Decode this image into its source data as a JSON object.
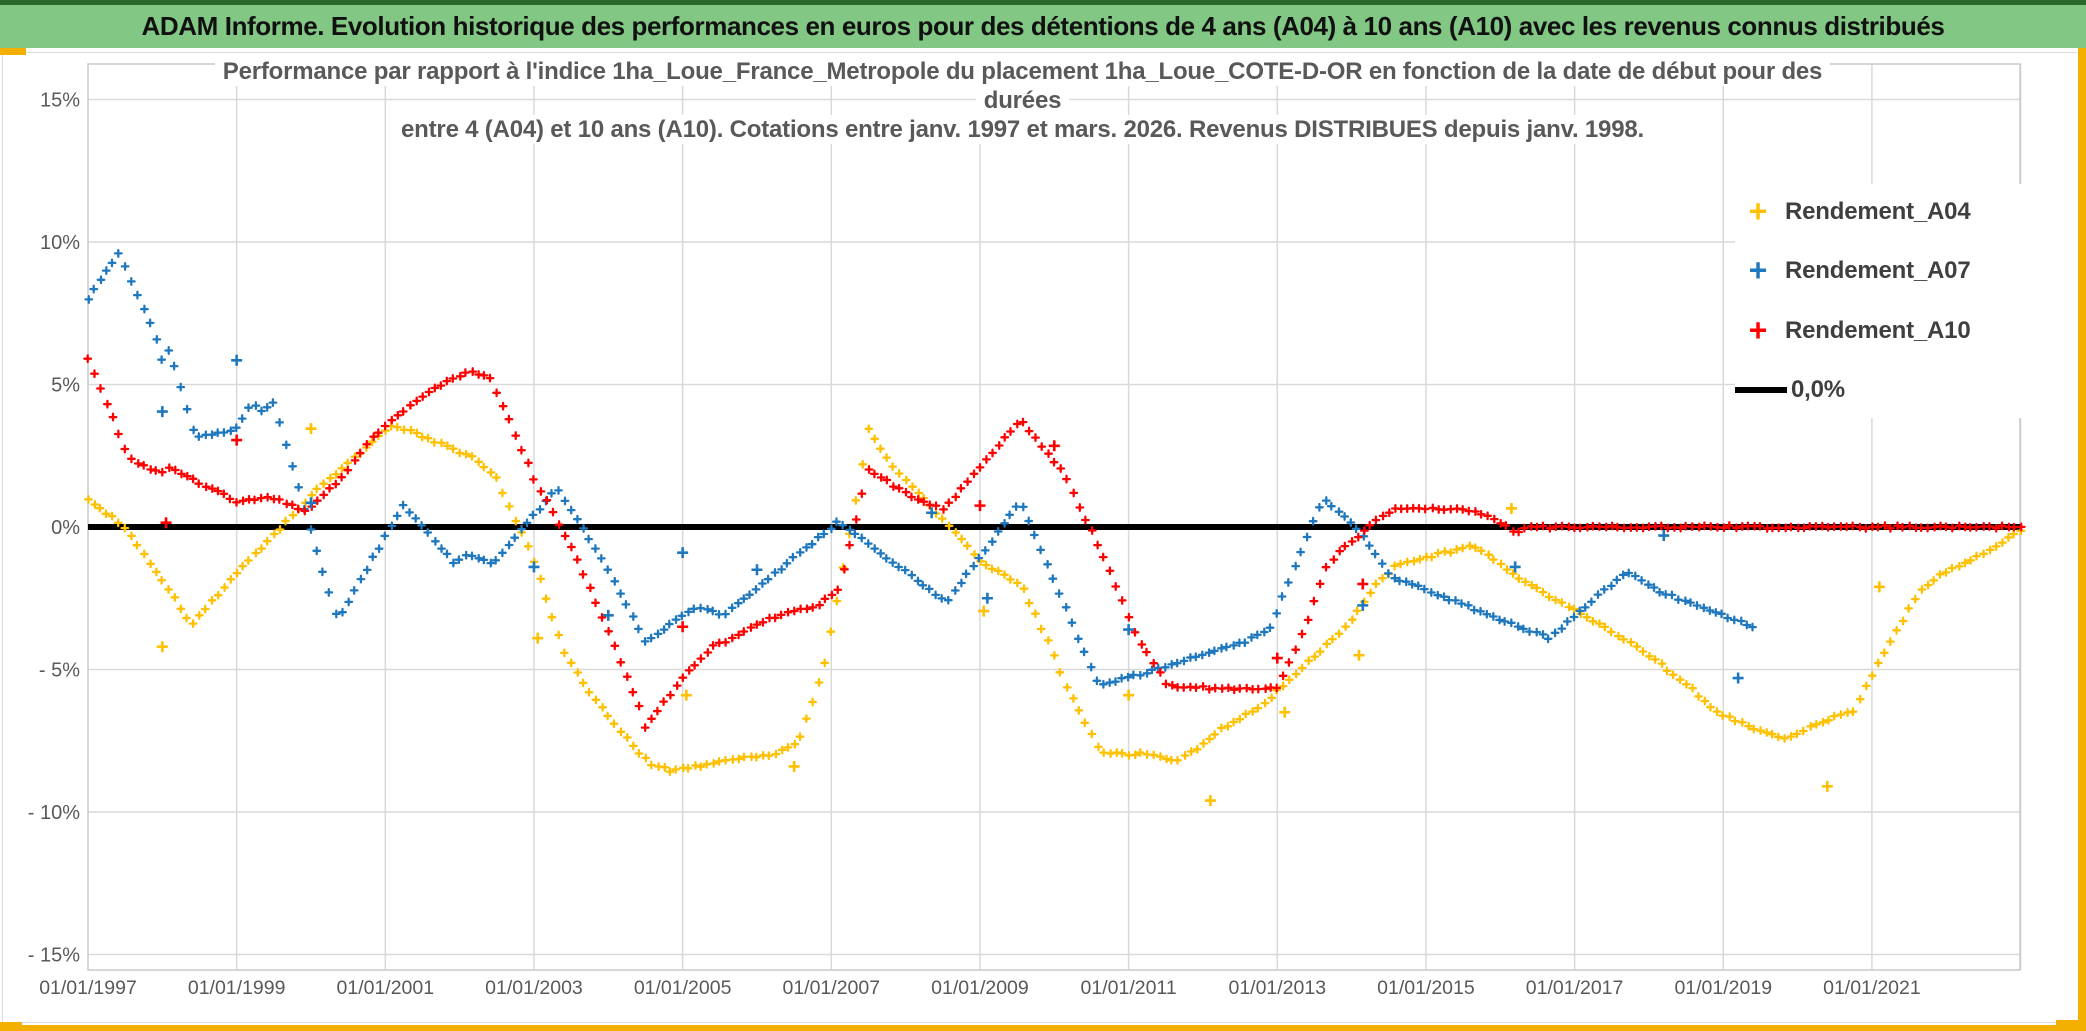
{
  "header": {
    "title": "ADAM Informe. Evolution historique des performances en euros pour des détentions de 4 ans (A04) à 10 ans (A10) avec les revenus connus distribués"
  },
  "colors": {
    "header_bg": "#82C783",
    "header_top_border": "#2B682B",
    "gold_accent": "#F3B000",
    "grid": "#D9D9D9",
    "plot_border": "#C9C9C9",
    "axis_text": "#595959",
    "title_text": "#595959",
    "legend_text": "#3F3F3F",
    "zero_line": "#000000"
  },
  "chart_data": {
    "type": "scatter",
    "title_lines": [
      "Performance par rapport à l'indice 1ha_Loue_France_Metropole  du placement 1ha_Loue_COTE-D-OR en fonction de la date de début pour des",
      "durées",
      "entre 4 (A04) et 10 ans (A10). Cotations entre janv. 1997 et mars. 2026. Revenus DISTRIBUES depuis janv. 1998."
    ],
    "xlabel": "",
    "ylabel": "",
    "x_tick_labels": [
      "01/01/1997",
      "01/01/1999",
      "01/01/2001",
      "01/01/2003",
      "01/01/2005",
      "01/01/2007",
      "01/01/2009",
      "01/01/2011",
      "01/01/2013",
      "01/01/2015",
      "01/01/2017",
      "01/01/2019",
      "01/01/2021"
    ],
    "x_tick_years": [
      1997,
      1999,
      2001,
      2003,
      2005,
      2007,
      2009,
      2011,
      2013,
      2015,
      2017,
      2019,
      2021
    ],
    "x_gridline_years": [
      1999,
      2001,
      2003,
      2005,
      2007,
      2009,
      2011,
      2013,
      2015,
      2017,
      2019,
      2021,
      2023
    ],
    "y_tick_labels": [
      "15%",
      "10%",
      "5%",
      "0%",
      "- 5%",
      "- 10%",
      "- 15%"
    ],
    "y_tick_values": [
      15,
      10,
      5,
      0,
      -5,
      -10,
      -15
    ],
    "xlim_years": [
      1997,
      2023
    ],
    "ylim": [
      -15,
      15
    ],
    "grid": true,
    "legend_position": "right-inside",
    "marker": "plus",
    "sample_step_years": 0.0833,
    "zero_line": {
      "label": "0,0%",
      "value": 0,
      "start_year": 1997.0,
      "end_year": 2023.0
    },
    "series": [
      {
        "name": "Rendement_A04",
        "color": "#FFC000",
        "vertices": [
          [
            1997.0,
            1.0
          ],
          [
            1997.5,
            0.0
          ],
          [
            1998.4,
            -3.4
          ],
          [
            1999.0,
            -1.6
          ],
          [
            1999.6,
            0.0
          ],
          [
            2000.15,
            1.5
          ],
          [
            2001.1,
            3.55
          ],
          [
            2001.5,
            3.2
          ],
          [
            2002.2,
            2.4
          ],
          [
            2002.5,
            1.7
          ],
          [
            2003.0,
            -1.2
          ],
          [
            2003.4,
            -4.3
          ],
          [
            2003.8,
            -6.0
          ],
          [
            2004.25,
            -7.4
          ],
          [
            2004.55,
            -8.3
          ],
          [
            2004.85,
            -8.55
          ],
          [
            2005.4,
            -8.3
          ],
          [
            2005.9,
            -8.05
          ],
          [
            2006.2,
            -8.0
          ],
          [
            2006.55,
            -7.6
          ],
          [
            2006.9,
            -5.0
          ],
          [
            2007.2,
            -1.0
          ],
          [
            2007.5,
            3.4
          ],
          [
            2007.9,
            1.9
          ],
          [
            2008.1,
            1.4
          ],
          [
            2008.6,
            0.0
          ],
          [
            2009.05,
            -1.3
          ],
          [
            2009.55,
            -2.0
          ],
          [
            2009.9,
            -3.9
          ],
          [
            2010.15,
            -5.5
          ],
          [
            2010.4,
            -6.8
          ],
          [
            2010.62,
            -7.9
          ],
          [
            2011.0,
            -8.0
          ],
          [
            2011.2,
            -7.95
          ],
          [
            2011.65,
            -8.25
          ],
          [
            2012.0,
            -7.6
          ],
          [
            2012.3,
            -7.0
          ],
          [
            2012.62,
            -6.55
          ],
          [
            2012.87,
            -6.1
          ],
          [
            2013.2,
            -5.25
          ],
          [
            2013.6,
            -4.3
          ],
          [
            2014.0,
            -3.3
          ],
          [
            2014.3,
            -2.1
          ],
          [
            2014.6,
            -1.35
          ],
          [
            2015.1,
            -1.0
          ],
          [
            2015.65,
            -0.65
          ],
          [
            2016.15,
            -1.6
          ],
          [
            2016.7,
            -2.5
          ],
          [
            2017.2,
            -3.2
          ],
          [
            2017.65,
            -3.9
          ],
          [
            2018.1,
            -4.7
          ],
          [
            2018.55,
            -5.6
          ],
          [
            2018.85,
            -6.4
          ],
          [
            2019.25,
            -6.9
          ],
          [
            2019.85,
            -7.45
          ],
          [
            2020.35,
            -6.8
          ],
          [
            2020.75,
            -6.45
          ],
          [
            2021.1,
            -4.7
          ],
          [
            2021.65,
            -2.2
          ],
          [
            2022.0,
            -1.55
          ],
          [
            2022.4,
            -1.1
          ],
          [
            2022.75,
            -0.5
          ],
          [
            2023.0,
            -0.15
          ]
        ]
      },
      {
        "name": "Rendement_A07",
        "color": "#1F78BE",
        "vertices": [
          [
            1997.0,
            8.0
          ],
          [
            1997.42,
            9.65
          ],
          [
            1997.92,
            6.6
          ],
          [
            1998.0,
            5.9
          ],
          [
            1998.1,
            6.2
          ],
          [
            1998.45,
            3.15
          ],
          [
            1999.0,
            3.45
          ],
          [
            1999.2,
            4.3
          ],
          [
            1999.35,
            4.05
          ],
          [
            1999.5,
            4.4
          ],
          [
            2000.35,
            -3.25
          ],
          [
            2001.25,
            0.8
          ],
          [
            2001.95,
            -1.35
          ],
          [
            2002.05,
            -0.95
          ],
          [
            2002.45,
            -1.3
          ],
          [
            2003.3,
            1.35
          ],
          [
            2003.85,
            -0.8
          ],
          [
            2004.5,
            -4.0
          ],
          [
            2005.2,
            -2.8
          ],
          [
            2005.55,
            -3.1
          ],
          [
            2007.1,
            0.2
          ],
          [
            2008.55,
            -2.65
          ],
          [
            2009.55,
            0.9
          ],
          [
            2010.6,
            -5.6
          ],
          [
            2012.6,
            -4.0
          ],
          [
            2012.9,
            -3.55
          ],
          [
            2013.62,
            1.0
          ],
          [
            2014.1,
            -0.1
          ],
          [
            2014.5,
            -1.7
          ],
          [
            2015.0,
            -2.2
          ],
          [
            2016.65,
            -3.9
          ],
          [
            2017.7,
            -1.55
          ],
          [
            2018.1,
            -2.2
          ],
          [
            2019.4,
            -3.5
          ]
        ]
      },
      {
        "name": "Rendement_A10",
        "color": "#FF0000",
        "vertices": [
          [
            1997.0,
            5.9
          ],
          [
            1997.55,
            2.45
          ],
          [
            1997.7,
            2.2
          ],
          [
            1998.0,
            1.9
          ],
          [
            1998.05,
            2.15
          ],
          [
            1999.05,
            0.85
          ],
          [
            1999.4,
            1.1
          ],
          [
            1999.95,
            0.55
          ],
          [
            2000.4,
            1.7
          ],
          [
            2000.85,
            3.2
          ],
          [
            2001.3,
            4.2
          ],
          [
            2001.8,
            5.1
          ],
          [
            2002.1,
            5.45
          ],
          [
            2002.4,
            5.3
          ],
          [
            2002.5,
            4.75
          ],
          [
            2003.0,
            1.7
          ],
          [
            2003.6,
            -1.2
          ],
          [
            2004.45,
            -6.5
          ],
          [
            2004.5,
            -7.0
          ],
          [
            2005.05,
            -5.1
          ],
          [
            2005.45,
            -4.1
          ],
          [
            2005.6,
            -4.0
          ],
          [
            2006.1,
            -3.3
          ],
          [
            2006.5,
            -2.9
          ],
          [
            2006.8,
            -2.8
          ],
          [
            2007.1,
            -2.2
          ],
          [
            2007.5,
            2.0
          ],
          [
            2008.0,
            1.2
          ],
          [
            2008.5,
            0.6
          ],
          [
            2009.55,
            3.75
          ],
          [
            2010.1,
            2.0
          ],
          [
            2010.3,
            0.9
          ],
          [
            2010.75,
            -1.5
          ],
          [
            2011.1,
            -3.8
          ],
          [
            2011.5,
            -5.5
          ],
          [
            2011.65,
            -5.6
          ],
          [
            2012.1,
            -5.65
          ],
          [
            2012.55,
            -5.7
          ],
          [
            2013.0,
            -5.65
          ],
          [
            2013.35,
            -3.7
          ],
          [
            2013.65,
            -1.5
          ],
          [
            2013.85,
            -0.8
          ],
          [
            2014.1,
            -0.3
          ],
          [
            2014.3,
            0.2
          ],
          [
            2014.6,
            0.65
          ],
          [
            2015.65,
            0.6
          ],
          [
            2015.95,
            0.25
          ],
          [
            2016.1,
            0.0
          ],
          [
            2016.2,
            -0.2
          ],
          [
            2016.4,
            0.0
          ],
          [
            2023.0,
            0.0
          ]
        ]
      }
    ],
    "outliers": [
      {
        "series": "Rendement_A04",
        "year": 1998.0,
        "pct": -4.2
      },
      {
        "series": "Rendement_A04",
        "year": 2000.0,
        "pct": 3.45
      },
      {
        "series": "Rendement_A04",
        "year": 2003.05,
        "pct": -3.9
      },
      {
        "series": "Rendement_A04",
        "year": 2005.05,
        "pct": -5.9
      },
      {
        "series": "Rendement_A04",
        "year": 2006.5,
        "pct": -8.4
      },
      {
        "series": "Rendement_A04",
        "year": 2009.05,
        "pct": -2.95
      },
      {
        "series": "Rendement_A04",
        "year": 2011.0,
        "pct": -5.9
      },
      {
        "series": "Rendement_A04",
        "year": 2012.1,
        "pct": -9.6
      },
      {
        "series": "Rendement_A04",
        "year": 2013.1,
        "pct": -6.5
      },
      {
        "series": "Rendement_A04",
        "year": 2014.1,
        "pct": -4.5
      },
      {
        "series": "Rendement_A04",
        "year": 2016.15,
        "pct": 0.65
      },
      {
        "series": "Rendement_A04",
        "year": 2020.4,
        "pct": -9.1
      },
      {
        "series": "Rendement_A04",
        "year": 2021.1,
        "pct": -2.1
      },
      {
        "series": "Rendement_A07",
        "year": 1998.0,
        "pct": 4.05
      },
      {
        "series": "Rendement_A07",
        "year": 1999.0,
        "pct": 5.85
      },
      {
        "series": "Rendement_A07",
        "year": 2000.0,
        "pct": 0.85
      },
      {
        "series": "Rendement_A07",
        "year": 2003.0,
        "pct": -1.4
      },
      {
        "series": "Rendement_A07",
        "year": 2004.0,
        "pct": -3.1
      },
      {
        "series": "Rendement_A07",
        "year": 2005.0,
        "pct": -0.9
      },
      {
        "series": "Rendement_A07",
        "year": 2006.0,
        "pct": -1.5
      },
      {
        "series": "Rendement_A07",
        "year": 2008.35,
        "pct": 0.5
      },
      {
        "series": "Rendement_A07",
        "year": 2009.1,
        "pct": -2.5
      },
      {
        "series": "Rendement_A07",
        "year": 2011.0,
        "pct": -3.6
      },
      {
        "series": "Rendement_A07",
        "year": 2014.15,
        "pct": -2.75
      },
      {
        "series": "Rendement_A07",
        "year": 2016.2,
        "pct": -1.4
      },
      {
        "series": "Rendement_A07",
        "year": 2018.2,
        "pct": -0.3
      },
      {
        "series": "Rendement_A07",
        "year": 2019.2,
        "pct": -5.3
      },
      {
        "series": "Rendement_A10",
        "year": 1998.05,
        "pct": 0.15
      },
      {
        "series": "Rendement_A10",
        "year": 1999.0,
        "pct": 3.05
      },
      {
        "series": "Rendement_A10",
        "year": 2005.0,
        "pct": -3.5
      },
      {
        "series": "Rendement_A10",
        "year": 2009.0,
        "pct": 0.75
      },
      {
        "series": "Rendement_A10",
        "year": 2010.0,
        "pct": 2.85
      },
      {
        "series": "Rendement_A10",
        "year": 2013.0,
        "pct": -4.6
      },
      {
        "series": "Rendement_A10",
        "year": 2014.15,
        "pct": -2.0
      }
    ]
  }
}
